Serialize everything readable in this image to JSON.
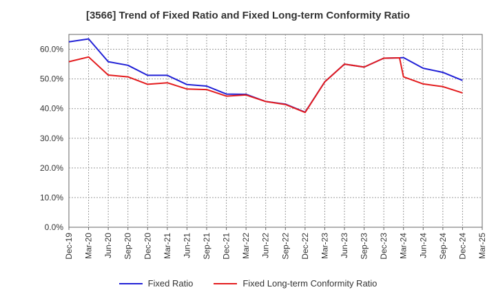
{
  "chart_data": {
    "type": "line",
    "title": "[3566]  Trend of Fixed Ratio and Fixed Long-term Conformity Ratio",
    "xlabel": "",
    "ylabel": "",
    "categories": [
      "Dec-19",
      "Mar-20",
      "Jun-20",
      "Sep-20",
      "Dec-20",
      "Mar-21",
      "Jun-21",
      "Sep-21",
      "Dec-21",
      "Mar-22",
      "Jun-22",
      "Sep-22",
      "Dec-22",
      "Mar-23",
      "Jun-23",
      "Sep-23",
      "Dec-23",
      "Mar-24",
      "Jun-24",
      "Sep-24",
      "Dec-24",
      "Mar-25"
    ],
    "yticks": [
      "0.0%",
      "10.0%",
      "20.0%",
      "30.0%",
      "40.0%",
      "50.0%",
      "60.0%"
    ],
    "ylim": [
      0,
      65
    ],
    "grid": true,
    "legend_position": "bottom-center",
    "series": [
      {
        "name": "Fixed Ratio",
        "color": "#1f1fd6",
        "points": [
          [
            0,
            62.5
          ],
          [
            1,
            63.5
          ],
          [
            2,
            55.8
          ],
          [
            3,
            54.6
          ],
          [
            4,
            51.2
          ],
          [
            5,
            51.2
          ],
          [
            6,
            48.1
          ],
          [
            7,
            47.6
          ],
          [
            8,
            44.9
          ],
          [
            9,
            44.8
          ],
          [
            10,
            42.4
          ],
          [
            11,
            41.5
          ],
          [
            12,
            38.8
          ],
          [
            13,
            49.0
          ],
          [
            14,
            55.0
          ],
          [
            15,
            54.0
          ],
          [
            16,
            57.0
          ],
          [
            16.8,
            57.1
          ],
          [
            17,
            57.2
          ],
          [
            18,
            53.6
          ],
          [
            19,
            52.2
          ],
          [
            20,
            49.5
          ]
        ]
      },
      {
        "name": "Fixed Long-term Conformity Ratio",
        "color": "#e31a1c",
        "points": [
          [
            0,
            55.8
          ],
          [
            1,
            57.4
          ],
          [
            2,
            51.3
          ],
          [
            3,
            50.7
          ],
          [
            4,
            48.2
          ],
          [
            5,
            48.7
          ],
          [
            6,
            46.6
          ],
          [
            7,
            46.4
          ],
          [
            8,
            44.2
          ],
          [
            9,
            44.6
          ],
          [
            10,
            42.4
          ],
          [
            11,
            41.4
          ],
          [
            12,
            38.7
          ],
          [
            13,
            49.0
          ],
          [
            14,
            55.0
          ],
          [
            15,
            54.0
          ],
          [
            16,
            57.0
          ],
          [
            16.8,
            57.1
          ],
          [
            17,
            50.7
          ],
          [
            18,
            48.3
          ],
          [
            19,
            47.4
          ],
          [
            20,
            45.3
          ]
        ]
      }
    ]
  }
}
